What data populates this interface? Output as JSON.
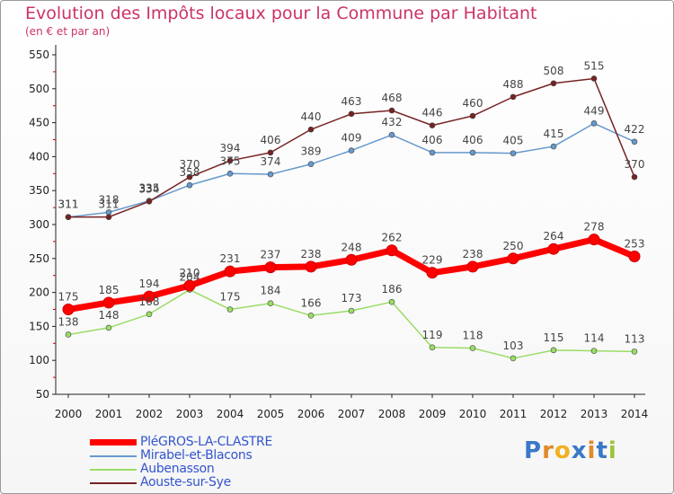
{
  "title": "Evolution des Impôts locaux pour la Commune par Habitant",
  "subtitle": "(en € et par an)",
  "logo": {
    "text": "Proxiti",
    "letters": [
      "P",
      "r",
      "o",
      "x",
      "i",
      "t",
      "i"
    ],
    "colors": [
      "#3a78c8",
      "#e08a2a",
      "#f0b020",
      "#3a78c8",
      "#e08a2a",
      "#3a78c8",
      "#9bc43a"
    ]
  },
  "chart_data": {
    "type": "line",
    "x": [
      "2000",
      "2001",
      "2002",
      "2003",
      "2004",
      "2005",
      "2006",
      "2007",
      "2008",
      "2009",
      "2010",
      "2011",
      "2012",
      "2013",
      "2014"
    ],
    "ylim": [
      50,
      550
    ],
    "yticks": [
      "50",
      "100",
      "150",
      "200",
      "250",
      "300",
      "350",
      "400",
      "450",
      "500",
      "550"
    ],
    "grid": false,
    "legend_position": "bottom-left",
    "series": [
      {
        "name": "PléGROS-LA-CLASTRE",
        "color": "#ff0000",
        "values": [
          175,
          185,
          194,
          210,
          231,
          237,
          238,
          248,
          262,
          229,
          238,
          250,
          264,
          278,
          253
        ]
      },
      {
        "name": "Mirabel-et-Blacons",
        "color": "#6699cc",
        "values": [
          311,
          318,
          335,
          358,
          375,
          374,
          389,
          409,
          432,
          406,
          406,
          405,
          415,
          449,
          422
        ]
      },
      {
        "name": "Aubenasson",
        "color": "#99dd66",
        "values": [
          138,
          148,
          168,
          204,
          175,
          184,
          166,
          173,
          186,
          119,
          118,
          103,
          115,
          114,
          113
        ]
      },
      {
        "name": "Aouste-sur-Sye",
        "color": "#772222",
        "values": [
          311,
          311,
          334,
          370,
          394,
          406,
          440,
          463,
          468,
          446,
          460,
          488,
          508,
          515,
          370
        ]
      }
    ]
  }
}
